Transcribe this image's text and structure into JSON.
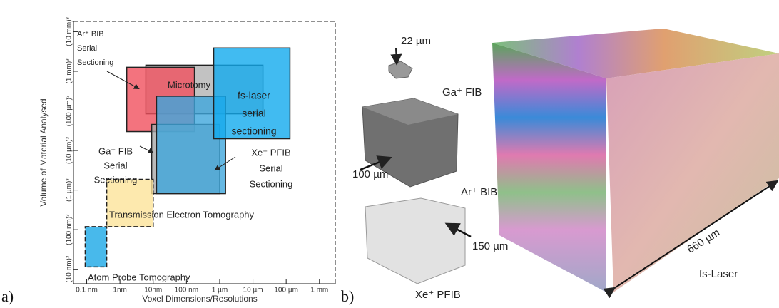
{
  "panel_labels": [
    "a)",
    "b)"
  ],
  "chart_data": {
    "type": "range",
    "x_label": "Voxel Dimensions/Resolutions",
    "y_label": "Volume of Material Analysed",
    "xscale": "log",
    "yscale": "log",
    "xlim": [
      0.04,
      3000000
    ],
    "ylim": [
      8e-08,
      6000000000000.0
    ],
    "xticks": [
      {
        "value": 0.1,
        "label": "0.1 nm"
      },
      {
        "value": 1,
        "label": "1nm"
      },
      {
        "value": 10,
        "label": "10nm"
      },
      {
        "value": 100,
        "label": "100 nm"
      },
      {
        "value": 1000,
        "label": "1 µm"
      },
      {
        "value": 10000,
        "label": "10 µm"
      },
      {
        "value": 100000,
        "label": "100 µm"
      },
      {
        "value": 1000000,
        "label": "1 mm"
      }
    ],
    "yticks": [
      {
        "value": 1e-06,
        "label": "(10 nm)³"
      },
      {
        "value": 0.001,
        "label": "(100 nm)³"
      },
      {
        "value": 1,
        "label": "(1 µm)³"
      },
      {
        "value": 1000,
        "label": "(10 µm)³"
      },
      {
        "value": 1000000,
        "label": "(100 µm)³"
      },
      {
        "value": 1000000000,
        "label": "(1 mm)³"
      },
      {
        "value": 1000000000000,
        "label": "(10 mm)³"
      }
    ],
    "ranges": [
      {
        "label": [
          "Microtomy"
        ],
        "x": [
          6,
          20000
        ],
        "y": [
          600000,
          2900000000
        ],
        "color": "#b3b3b3",
        "dashed": false
      },
      {
        "label": [
          "Ar⁺ BIB",
          "Serial",
          "Sectioning"
        ],
        "x": [
          1.6,
          174
        ],
        "y": [
          27000,
          2000000000
        ],
        "color": "#f0505e",
        "dashed": false
      },
      {
        "label": [
          "Ga⁺ FIB",
          "Serial",
          "Sectioning"
        ],
        "x": [
          9,
          1000
        ],
        "y": [
          0.54,
          94000
        ],
        "color": "#a9a9a9",
        "dashed": false
      },
      {
        "label": [
          "Xe⁺ PFIB",
          "Serial",
          "Sectioning"
        ],
        "x": [
          12.6,
          1500
        ],
        "y": [
          0.54,
          13000000
        ],
        "color": "#3fa6dc",
        "dashed": false
      },
      {
        "label": [
          "fs-laser",
          "serial",
          "sectioning"
        ],
        "x": [
          660,
          130000
        ],
        "y": [
          7800,
          58000000000
        ],
        "color": "#12aaee",
        "dashed": false
      },
      {
        "label": [
          "Transmission Electron Tomography"
        ],
        "x": [
          0.4,
          10
        ],
        "y": [
          0.0017,
          6.5
        ],
        "color": "#fde49a",
        "dashed": true
      },
      {
        "label": [
          "Atom Probe Tomography"
        ],
        "x": [
          0.09,
          0.4
        ],
        "y": [
          1.5e-06,
          0.0017
        ],
        "color": "#1aa7e6",
        "dashed": true
      }
    ]
  },
  "panel_b": {
    "labels": [
      "22 µm",
      "Ga⁺ FIB",
      "100 µm",
      "Ar⁺ BIB",
      "150 µm",
      "Xe⁺ PFIB",
      "660 µm",
      "fs-Laser"
    ]
  }
}
